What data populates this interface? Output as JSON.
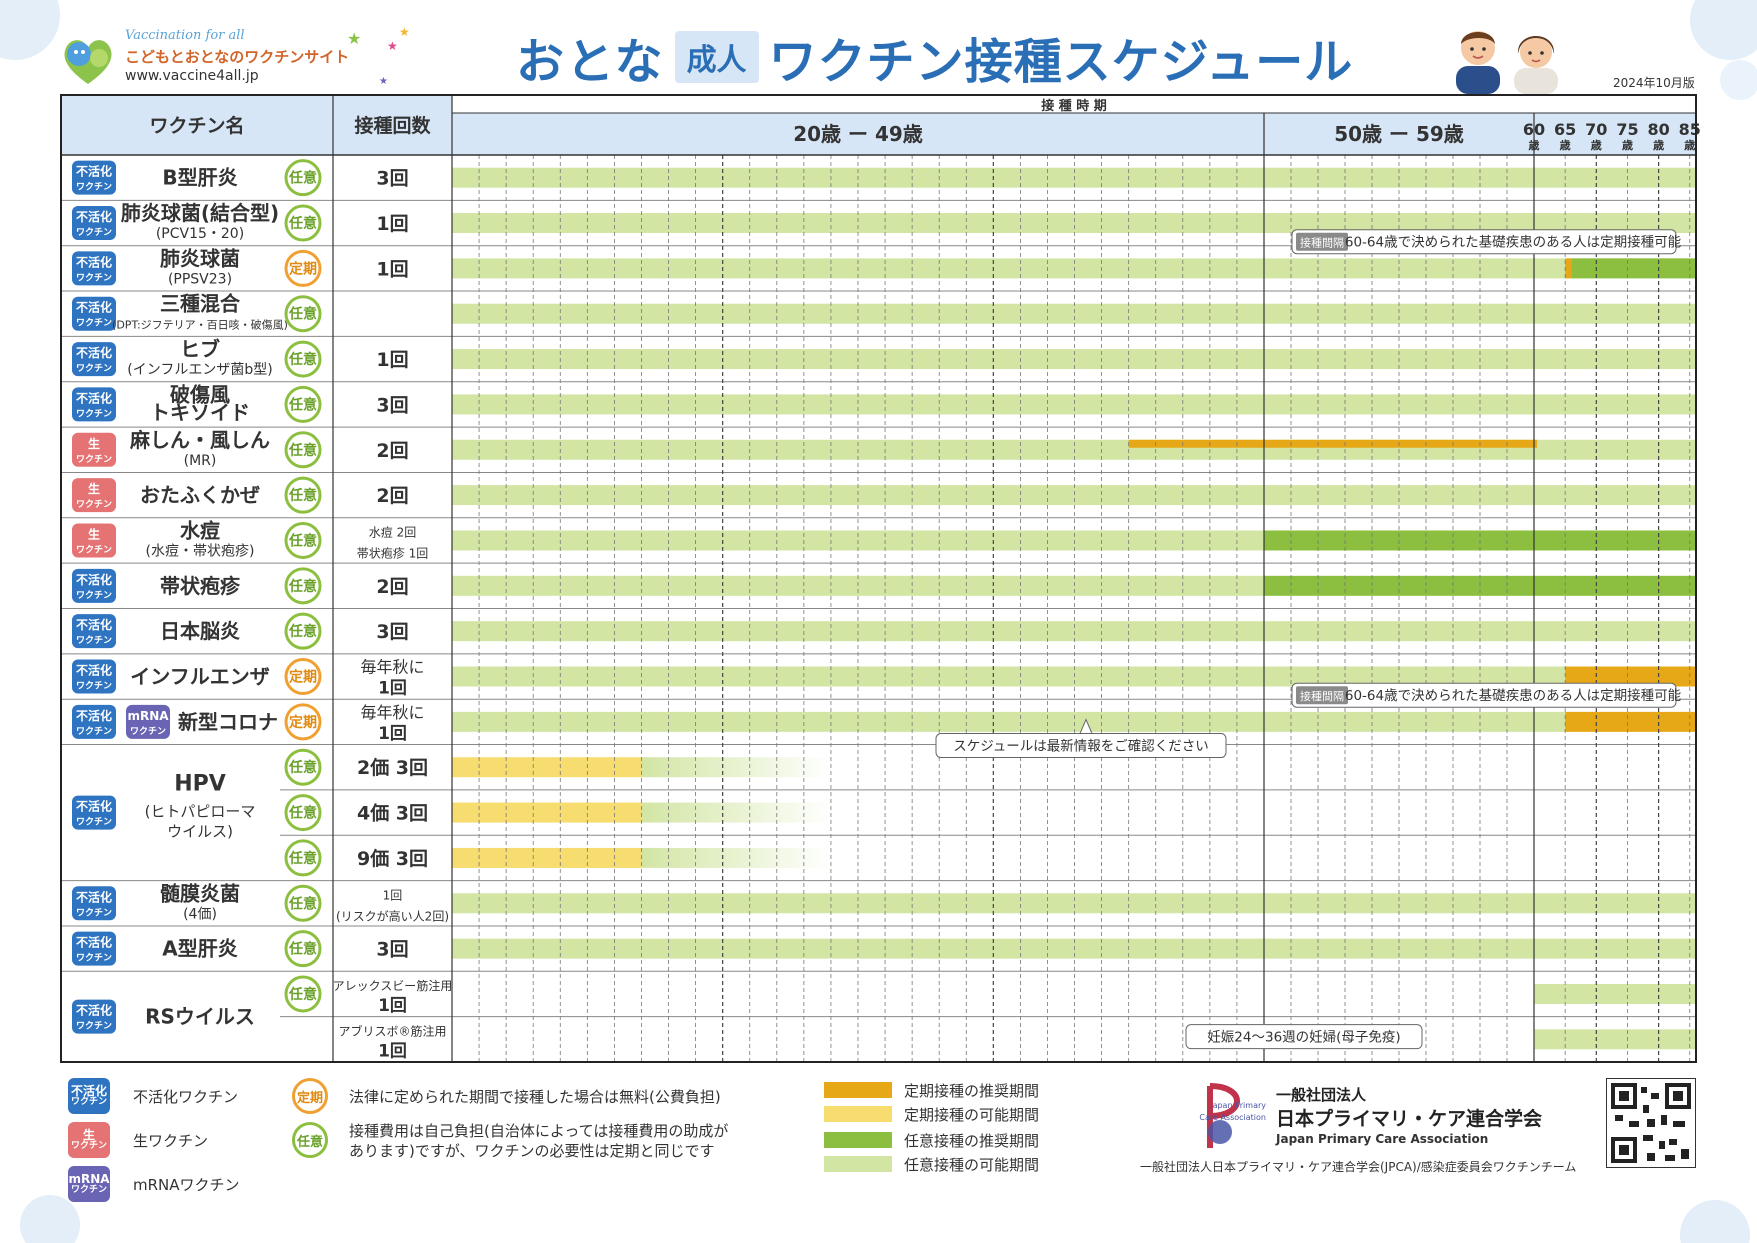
{
  "header": {
    "logo_tagline": "Vaccination for all",
    "logo_site": "こどもとおとなのワクチンサイト",
    "logo_url": "www.vaccine4all.jp",
    "title_pre": "おとな",
    "title_badge": "成人",
    "title_main": "ワクチン接種スケジュール",
    "edition": "2024年10月版"
  },
  "table": {
    "col_vaccine": "ワクチン名",
    "col_doses": "接種回数",
    "col_period": "接 種 時 期",
    "age_bands": [
      {
        "label": "20歳 ー 49歳",
        "from": 20,
        "to": 50
      },
      {
        "label": "50歳 ー 59歳",
        "from": 50,
        "to": 60
      }
    ],
    "age_ticks": [
      {
        "age": 60,
        "label": "60",
        "unit": "歳"
      },
      {
        "age": 65,
        "label": "65",
        "unit": "歳"
      },
      {
        "age": 70,
        "label": "70",
        "unit": "歳"
      },
      {
        "age": 75,
        "label": "75",
        "unit": "歳"
      },
      {
        "age": 80,
        "label": "80",
        "unit": "歳"
      },
      {
        "age": 85,
        "label": "85",
        "unit": "歳"
      }
    ],
    "rows": [
      {
        "type": "不活化",
        "badges": [
          "inact"
        ],
        "name": "B型肝炎",
        "sub": "",
        "cat": "任意",
        "doses": [
          "3回"
        ],
        "span": 1,
        "bars": [
          {
            "kind": "nin_pos",
            "from": 20,
            "to": 86
          }
        ]
      },
      {
        "type": "不活化",
        "badges": [
          "inact"
        ],
        "name": "肺炎球菌(結合型)",
        "sub": "(PCV15・20)",
        "cat": "任意",
        "doses": [
          "1回"
        ],
        "span": 1,
        "bars": [
          {
            "kind": "nin_pos",
            "from": 20,
            "to": 86
          }
        ]
      },
      {
        "type": "不活化",
        "badges": [
          "inact"
        ],
        "name": "肺炎球菌",
        "sub": "(PPSV23)",
        "cat": "定期",
        "doses": [
          "1回"
        ],
        "span": 1,
        "bars": [
          {
            "kind": "nin_pos",
            "from": 20,
            "to": 86
          },
          {
            "kind": "tei_rec",
            "from": 65,
            "to": 66
          },
          {
            "kind": "nin_rec",
            "from": 66,
            "to": 86
          }
        ],
        "note": {
          "tag": "接種間隔",
          "text": "60-64歳で決められた基礎疾患のある人は定期接種可能"
        }
      },
      {
        "type": "不活化",
        "badges": [
          "inact"
        ],
        "name": "三種混合",
        "sub": "(DPT:ジフテリア・百日咳・破傷風)",
        "cat": "任意",
        "doses": [
          ""
        ],
        "span": 1,
        "bars": [
          {
            "kind": "nin_pos",
            "from": 20,
            "to": 86
          }
        ]
      },
      {
        "type": "不活化",
        "badges": [
          "inact"
        ],
        "name": "ヒブ",
        "sub": "(インフルエンザ菌b型)",
        "cat": "任意",
        "doses": [
          "1回"
        ],
        "span": 1,
        "bars": [
          {
            "kind": "nin_pos",
            "from": 20,
            "to": 86
          }
        ]
      },
      {
        "type": "不活化",
        "badges": [
          "inact"
        ],
        "name": "破傷風",
        "sub": "トキソイド",
        "cat": "任意",
        "doses": [
          "3回"
        ],
        "span": 1,
        "bars": [
          {
            "kind": "nin_pos",
            "from": 20,
            "to": 86
          }
        ]
      },
      {
        "type": "生",
        "badges": [
          "live"
        ],
        "name": "麻しん・風しん",
        "sub": "(MR)",
        "cat": "任意",
        "doses": [
          "2回"
        ],
        "span": 1,
        "bars": [
          {
            "kind": "nin_pos",
            "from": 20,
            "to": 86
          },
          {
            "kind": "tei_rec_thin",
            "from": 45,
            "to": 60.5
          }
        ]
      },
      {
        "type": "生",
        "badges": [
          "live"
        ],
        "name": "おたふくかぜ",
        "sub": "",
        "cat": "任意",
        "doses": [
          "2回"
        ],
        "span": 1,
        "bars": [
          {
            "kind": "nin_pos",
            "from": 20,
            "to": 86
          }
        ]
      },
      {
        "type": "生",
        "badges": [
          "live"
        ],
        "name": "水痘",
        "sub": "(水痘・帯状疱疹)",
        "cat": "任意",
        "doses": [
          "水痘 2回",
          "帯状疱疹 1回"
        ],
        "span": 1,
        "bars": [
          {
            "kind": "nin_pos",
            "from": 20,
            "to": 50
          },
          {
            "kind": "nin_rec",
            "from": 50,
            "to": 86
          }
        ]
      },
      {
        "type": "不活化",
        "badges": [
          "inact"
        ],
        "name": "帯状疱疹",
        "sub": "",
        "cat": "任意",
        "doses": [
          "2回"
        ],
        "span": 1,
        "bars": [
          {
            "kind": "nin_pos",
            "from": 20,
            "to": 50
          },
          {
            "kind": "nin_rec",
            "from": 50,
            "to": 86
          }
        ]
      },
      {
        "type": "不活化",
        "badges": [
          "inact"
        ],
        "name": "日本脳炎",
        "sub": "",
        "cat": "任意",
        "doses": [
          "3回"
        ],
        "span": 1,
        "bars": [
          {
            "kind": "nin_pos",
            "from": 20,
            "to": 86
          }
        ]
      },
      {
        "type": "不活化",
        "badges": [
          "inact"
        ],
        "name": "インフルエンザ",
        "sub": "",
        "cat": "定期",
        "doses": [
          "毎年秋に",
          "1回"
        ],
        "span": 1,
        "bars": [
          {
            "kind": "nin_pos",
            "from": 20,
            "to": 65
          },
          {
            "kind": "tei_rec",
            "from": 65,
            "to": 86
          }
        ]
      },
      {
        "type": "不活化",
        "badges": [
          "inact",
          "mrna"
        ],
        "name": "新型コロナ",
        "sub": "",
        "cat": "定期",
        "doses": [
          "毎年秋に",
          "1回"
        ],
        "span": 1,
        "bars": [
          {
            "kind": "nin_pos",
            "from": 20,
            "to": 65
          },
          {
            "kind": "tei_rec",
            "from": 65,
            "to": 86
          }
        ],
        "note": {
          "tag": "接種間隔",
          "text": "60-64歳で決められた基礎疾患のある人は定期接種可能"
        }
      },
      {
        "type": "不活化",
        "badges": [
          "inact"
        ],
        "name": "HPV",
        "sub": "(ヒトパピローマ|ウイルス)",
        "cat": "任意",
        "doses": [
          "2価 3回"
        ],
        "span": 3,
        "bars": [
          {
            "kind": "tei_pos",
            "from": 20,
            "to": 27
          },
          {
            "kind": "fade",
            "from": 27,
            "to": 34
          }
        ]
      },
      {
        "cont": true,
        "cat": "任意",
        "doses": [
          "4価 3回"
        ],
        "bars": [
          {
            "kind": "tei_pos",
            "from": 20,
            "to": 27
          },
          {
            "kind": "fade",
            "from": 27,
            "to": 34
          }
        ]
      },
      {
        "cont": true,
        "cat": "任意",
        "doses": [
          "9価 3回"
        ],
        "bars": [
          {
            "kind": "tei_pos",
            "from": 20,
            "to": 27
          },
          {
            "kind": "fade",
            "from": 27,
            "to": 34
          }
        ]
      },
      {
        "type": "不活化",
        "badges": [
          "inact"
        ],
        "name": "髄膜炎菌",
        "sub": "(4価)",
        "cat": "任意",
        "doses": [
          "1回",
          "(リスクが高い人2回)"
        ],
        "span": 1,
        "bars": [
          {
            "kind": "nin_pos",
            "from": 20,
            "to": 86
          }
        ]
      },
      {
        "type": "不活化",
        "badges": [
          "inact"
        ],
        "name": "A型肝炎",
        "sub": "",
        "cat": "任意",
        "doses": [
          "3回"
        ],
        "span": 1,
        "bars": [
          {
            "kind": "nin_pos",
            "from": 20,
            "to": 86
          }
        ]
      },
      {
        "type": "不活化",
        "badges": [
          "inact"
        ],
        "name": "RSウイルス",
        "sub": "",
        "cat": "任意",
        "doses": [
          "アレックスビー筋注用",
          "1回"
        ],
        "span": 2,
        "bars": [
          {
            "kind": "nin_pos",
            "from": 60,
            "to": 86
          }
        ]
      },
      {
        "cont": true,
        "doses": [
          "アブリスボ®筋注用",
          "1回"
        ],
        "bars": [
          {
            "kind": "nin_pos",
            "from": 60,
            "to": 86
          }
        ]
      }
    ],
    "callout_latest": "スケジュールは最新情報をご確認ください",
    "callout_pregnancy": "妊娠24〜36週の妊婦(母子免疫)"
  },
  "badge_labels": {
    "inact": {
      "top": "不活化",
      "bottom": "ワクチン"
    },
    "live": {
      "top": "生",
      "bottom": "ワクチン"
    },
    "mrna": {
      "top": "mRNA",
      "bottom": "ワクチン"
    }
  },
  "legend": {
    "inact": "不活化ワクチン",
    "live": "生ワクチン",
    "mrna": "mRNAワクチン",
    "teiki_label": "定期",
    "teiki_desc": "法律に定められた期間で接種した場合は無料(公費負担)",
    "nini_label": "任意",
    "nini_desc_1": "接種費用は自己負担(自治体によっては接種費用の助成が",
    "nini_desc_2": "あります)ですが、ワクチンの必要性は定期と同じです",
    "tei_rec": "定期接種の推奨期間",
    "tei_pos": "定期接種の可能期間",
    "nin_rec": "任意接種の推奨期間",
    "nin_pos": "任意接種の可能期間"
  },
  "footer": {
    "org_kind": "一般社団法人",
    "org_name": "日本プライマリ・ケア連合学会",
    "org_en": "Japan Primary Care Association",
    "org_logo_text": "Japan Primary Care Association",
    "credit": "一般社団法人日本プライマリ・ケア連合学会(JPCA)/感染症委員会ワクチンチーム"
  },
  "colors": {
    "tei_rec": "#e6a817",
    "tei_pos": "#f7dc6f",
    "nin_rec": "#8cbf3f",
    "nin_pos": "#d2e5a3",
    "inact": "#2e74c1",
    "live": "#e57373",
    "mrna": "#6a64b4",
    "teiki_circle": "#f0a030",
    "nini_circle": "#8cbf3f",
    "header_bg": "#d6e6f6",
    "title": "#2a6fb6"
  }
}
